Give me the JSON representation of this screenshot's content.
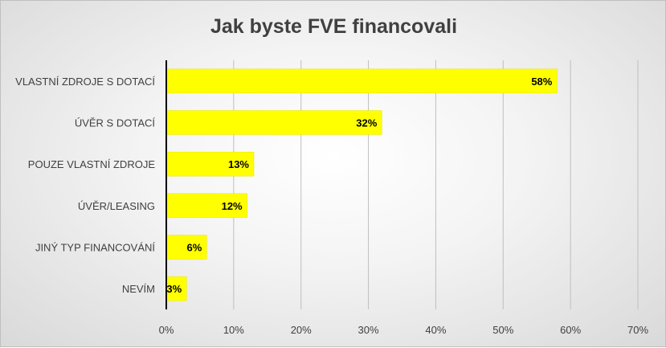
{
  "chart_data": {
    "type": "bar",
    "orientation": "horizontal",
    "title": "Jak byste FVE financovali",
    "categories": [
      "VLASTNÍ ZDROJE S DOTACÍ",
      "ÚVĚR S DOTACÍ",
      "POUZE VLASTNÍ ZDROJE",
      "ÚVĚR/LEASING",
      "JINÝ TYP FINANCOVÁNÍ",
      "NEVÍM"
    ],
    "values": [
      58,
      32,
      13,
      12,
      6,
      3
    ],
    "data_labels": [
      "58%",
      "32%",
      "13%",
      "12%",
      "6%",
      "3%"
    ],
    "x_ticks": [
      0,
      10,
      20,
      30,
      40,
      50,
      60,
      70
    ],
    "x_tick_labels": [
      "0%",
      "10%",
      "20%",
      "30%",
      "40%",
      "50%",
      "60%",
      "70%"
    ],
    "xlim": [
      0,
      70
    ],
    "grid": "vertical",
    "legend": "none",
    "bar_color": "#ffff00",
    "grid_color": "#bfbfbf",
    "axis_color": "#000000"
  }
}
